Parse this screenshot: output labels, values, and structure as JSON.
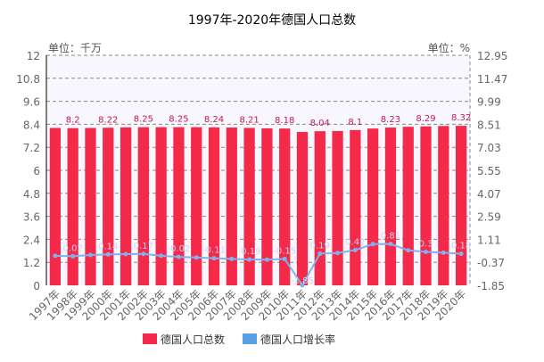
{
  "chart_data": {
    "type": "bar+line",
    "title": "1997年-2020年德国人口总数",
    "left_unit_label": "单位：千万",
    "right_unit_label": "单位：%",
    "categories": [
      "1997年",
      "1998年",
      "1999年",
      "2000年",
      "2001年",
      "2002年",
      "2003年",
      "2004年",
      "2005年",
      "2006年",
      "2007年",
      "2008年",
      "2009年",
      "2010年",
      "2011年",
      "2012年",
      "2013年",
      "2014年",
      "2015年",
      "2016年",
      "2017年",
      "2018年",
      "2019年",
      "2020年"
    ],
    "left_ticks": [
      "0",
      "1.2",
      "2.4",
      "3.6",
      "4.8",
      "6",
      "7.2",
      "8.4",
      "9.6",
      "10.8",
      "12"
    ],
    "right_ticks": [
      "-1.85",
      "-0.37",
      "1.11",
      "2.59",
      "4.07",
      "5.55",
      "7.03",
      "8.51",
      "9.99",
      "11.47",
      "12.95"
    ],
    "ylim_left": [
      0,
      12
    ],
    "ylim_right": [
      -1.85,
      12.95
    ],
    "grid": true,
    "legend_position": "bottom",
    "series": [
      {
        "name": "德国人口总数",
        "type": "bar",
        "axis": "left",
        "color": "#f5294a",
        "values": [
          8.21,
          8.2,
          8.21,
          8.22,
          8.24,
          8.25,
          8.25,
          8.25,
          8.25,
          8.24,
          8.23,
          8.21,
          8.19,
          8.18,
          8.0,
          8.04,
          8.05,
          8.1,
          8.18,
          8.23,
          8.27,
          8.29,
          8.31,
          8.32
        ],
        "labels": [
          "",
          "8.2",
          "",
          "8.22",
          "",
          "8.25",
          "",
          "8.25",
          "",
          "8.24",
          "",
          "8.21",
          "",
          "8.18",
          "",
          "8.04",
          "",
          "8.1",
          "",
          "8.23",
          "",
          "8.29",
          "",
          "8.32"
        ]
      },
      {
        "name": "德国人口增长率",
        "type": "line",
        "axis": "right",
        "color": "#7db3f0",
        "values": [
          0.05,
          0.02,
          0.1,
          0.14,
          0.16,
          0.17,
          0.05,
          -0.02,
          -0.06,
          -0.11,
          -0.15,
          -0.19,
          -0.2,
          -0.15,
          -1.85,
          0.19,
          0.23,
          0.42,
          0.8,
          0.81,
          0.4,
          0.3,
          0.25,
          0.18
        ],
        "labels": [
          "",
          "0.02",
          "",
          "0.14",
          "",
          "0.17",
          "",
          "-0.02",
          "",
          "-0.11",
          "",
          "-0.19",
          "",
          "-0.15",
          "-1.85",
          "0.19",
          "",
          "0.42",
          "",
          "0.81",
          "",
          "0.3",
          "",
          "0.18"
        ]
      }
    ]
  }
}
